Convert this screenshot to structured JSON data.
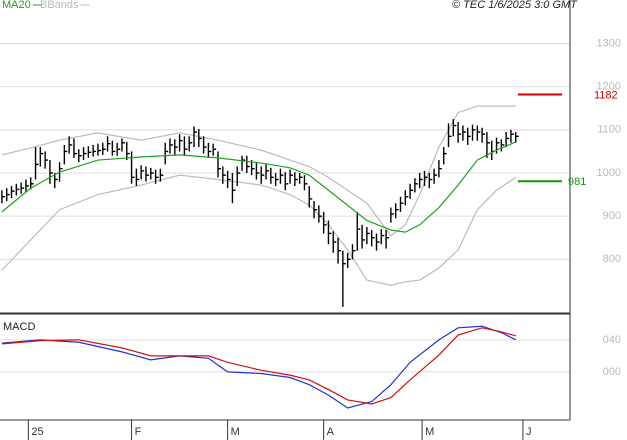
{
  "chart_data": {
    "type": "ohlc",
    "copyright": "© TEC 1/6/2025 3:0 GMT",
    "color": "#000000",
    "xlim": [
      -0.4,
      118.3
    ],
    "xticks": [
      {
        "value": 5.5,
        "label": "25"
      },
      {
        "value": 27,
        "label": "F"
      },
      {
        "value": 47,
        "label": "M"
      },
      {
        "value": 67,
        "label": "A"
      },
      {
        "value": 87.5,
        "label": "M"
      },
      {
        "value": 108.5,
        "label": "J"
      }
    ],
    "ylim": [
      678,
      1373
    ],
    "yticks": [
      800,
      900,
      1000,
      1100,
      1200,
      1300
    ],
    "grid": true,
    "high": [
      960,
      965,
      970,
      975,
      978,
      985,
      990,
      1060,
      1060,
      1050,
      1030,
      1000,
      1025,
      1065,
      1085,
      1080,
      1055,
      1060,
      1062,
      1065,
      1068,
      1070,
      1085,
      1075,
      1070,
      1080,
      1072,
      1050,
      1010,
      1018,
      1015,
      1012,
      1008,
      1010,
      1070,
      1080,
      1078,
      1090,
      1085,
      1085,
      1108,
      1102,
      1085,
      1070,
      1068,
      1050,
      1015,
      1005,
      1000,
      1015,
      1040,
      1040,
      1030,
      1025,
      1015,
      1020,
      1012,
      1000,
      1010,
      1002,
      1008,
      1002,
      1000,
      995,
      970,
      935,
      925,
      910,
      890,
      865,
      850,
      820,
      815,
      835,
      910,
      880,
      875,
      868,
      860,
      870,
      868,
      920,
      930,
      945,
      960,
      975,
      988,
      1000,
      1005,
      1000,
      1010,
      1030,
      1060,
      1115,
      1125,
      1118,
      1110,
      1105,
      1112,
      1110,
      1105,
      1095,
      1075,
      1082,
      1078,
      1095,
      1100,
      1095
    ],
    "low": [
      930,
      935,
      942,
      948,
      952,
      955,
      962,
      985,
      1015,
      1010,
      975,
      965,
      980,
      1020,
      1045,
      1035,
      1025,
      1030,
      1035,
      1038,
      1040,
      1042,
      1050,
      1040,
      1040,
      1050,
      1030,
      975,
      970,
      985,
      980,
      985,
      975,
      980,
      1020,
      1045,
      1040,
      1050,
      1040,
      1050,
      1060,
      1060,
      1045,
      1035,
      1040,
      990,
      975,
      965,
      930,
      970,
      1005,
      1000,
      995,
      985,
      975,
      985,
      975,
      970,
      975,
      960,
      975,
      970,
      975,
      960,
      920,
      895,
      885,
      860,
      835,
      815,
      790,
      690,
      780,
      800,
      820,
      825,
      835,
      830,
      820,
      835,
      825,
      885,
      895,
      910,
      925,
      940,
      955,
      965,
      970,
      965,
      975,
      990,
      1020,
      1060,
      1085,
      1070,
      1075,
      1065,
      1075,
      1075,
      1070,
      1035,
      1030,
      1045,
      1050,
      1060,
      1070,
      1070
    ],
    "close": [
      945,
      950,
      958,
      962,
      965,
      970,
      975,
      1020,
      1045,
      1030,
      1000,
      985,
      1010,
      1050,
      1065,
      1045,
      1040,
      1045,
      1048,
      1050,
      1052,
      1055,
      1068,
      1050,
      1055,
      1070,
      1045,
      990,
      985,
      1005,
      995,
      1000,
      990,
      995,
      1050,
      1065,
      1060,
      1075,
      1055,
      1070,
      1095,
      1080,
      1060,
      1050,
      1055,
      1010,
      995,
      985,
      960,
      1000,
      1030,
      1015,
      1010,
      1000,
      995,
      1005,
      990,
      985,
      995,
      975,
      995,
      985,
      990,
      975,
      940,
      915,
      900,
      880,
      860,
      840,
      820,
      790,
      800,
      820,
      870,
      845,
      860,
      850,
      840,
      855,
      850,
      905,
      915,
      930,
      945,
      960,
      975,
      985,
      990,
      985,
      995,
      1010,
      1045,
      1085,
      1110,
      1090,
      1095,
      1085,
      1100,
      1095,
      1090,
      1070,
      1050,
      1070,
      1065,
      1080,
      1090,
      1085
    ],
    "overlays": [
      {
        "name": "MA20",
        "color": "#22a022",
        "x": [
          0,
          6,
          12,
          20,
          29,
          37,
          45,
          54,
          60,
          64,
          68,
          72,
          76,
          81,
          84,
          87,
          91,
          95,
          99,
          103,
          107
        ],
        "values": [
          910,
          965,
          1002,
          1030,
          1037,
          1042,
          1035,
          1023,
          1012,
          995,
          960,
          925,
          890,
          868,
          863,
          880,
          920,
          972,
          1030,
          1053,
          1072
        ]
      },
      {
        "name": "BBands",
        "color": "#bbbbbb",
        "x": [
          0,
          6,
          12,
          20,
          29,
          37,
          45,
          54,
          60,
          64,
          68,
          72,
          76,
          81,
          84,
          87,
          91,
          95,
          99,
          103,
          107
        ],
        "upper": [
          1042,
          1058,
          1076,
          1093,
          1076,
          1093,
          1076,
          1053,
          1030,
          1015,
          990,
          960,
          930,
          855,
          880,
          950,
          1060,
          1140,
          1155,
          1155,
          1155
        ],
        "lower": [
          775,
          845,
          915,
          950,
          972,
          995,
          985,
          972,
          950,
          926,
          880,
          822,
          752,
          740,
          748,
          752,
          780,
          822,
          915,
          960,
          990
        ]
      }
    ],
    "levels": [
      {
        "value": 1182,
        "color": "#cc0000"
      },
      {
        "value": 981,
        "color": "#119911"
      }
    ],
    "macd": {
      "type": "line",
      "title": "MACD",
      "ylim": [
        -60,
        71
      ],
      "yticks": [
        {
          "value": 40,
          "label": "040"
        },
        {
          "value": 0,
          "label": "000"
        }
      ],
      "grid": true,
      "x": [
        0,
        8,
        16,
        25,
        31,
        37,
        43,
        47,
        54,
        60,
        64,
        68,
        72,
        77,
        81,
        85,
        91,
        95,
        100,
        104,
        107
      ],
      "series": [
        {
          "color": "#2233cc",
          "values": [
            36,
            40,
            37,
            25,
            15,
            20,
            17,
            0,
            -2,
            -7,
            -16,
            -29,
            -45,
            -37,
            -16,
            12,
            40,
            55,
            57,
            49,
            40
          ]
        },
        {
          "color": "#cc1111",
          "values": [
            35,
            39,
            40,
            30,
            20,
            20,
            20,
            12,
            2,
            -4,
            -10,
            -22,
            -35,
            -40,
            -32,
            -10,
            21,
            46,
            55,
            50,
            45
          ]
        }
      ]
    }
  }
}
